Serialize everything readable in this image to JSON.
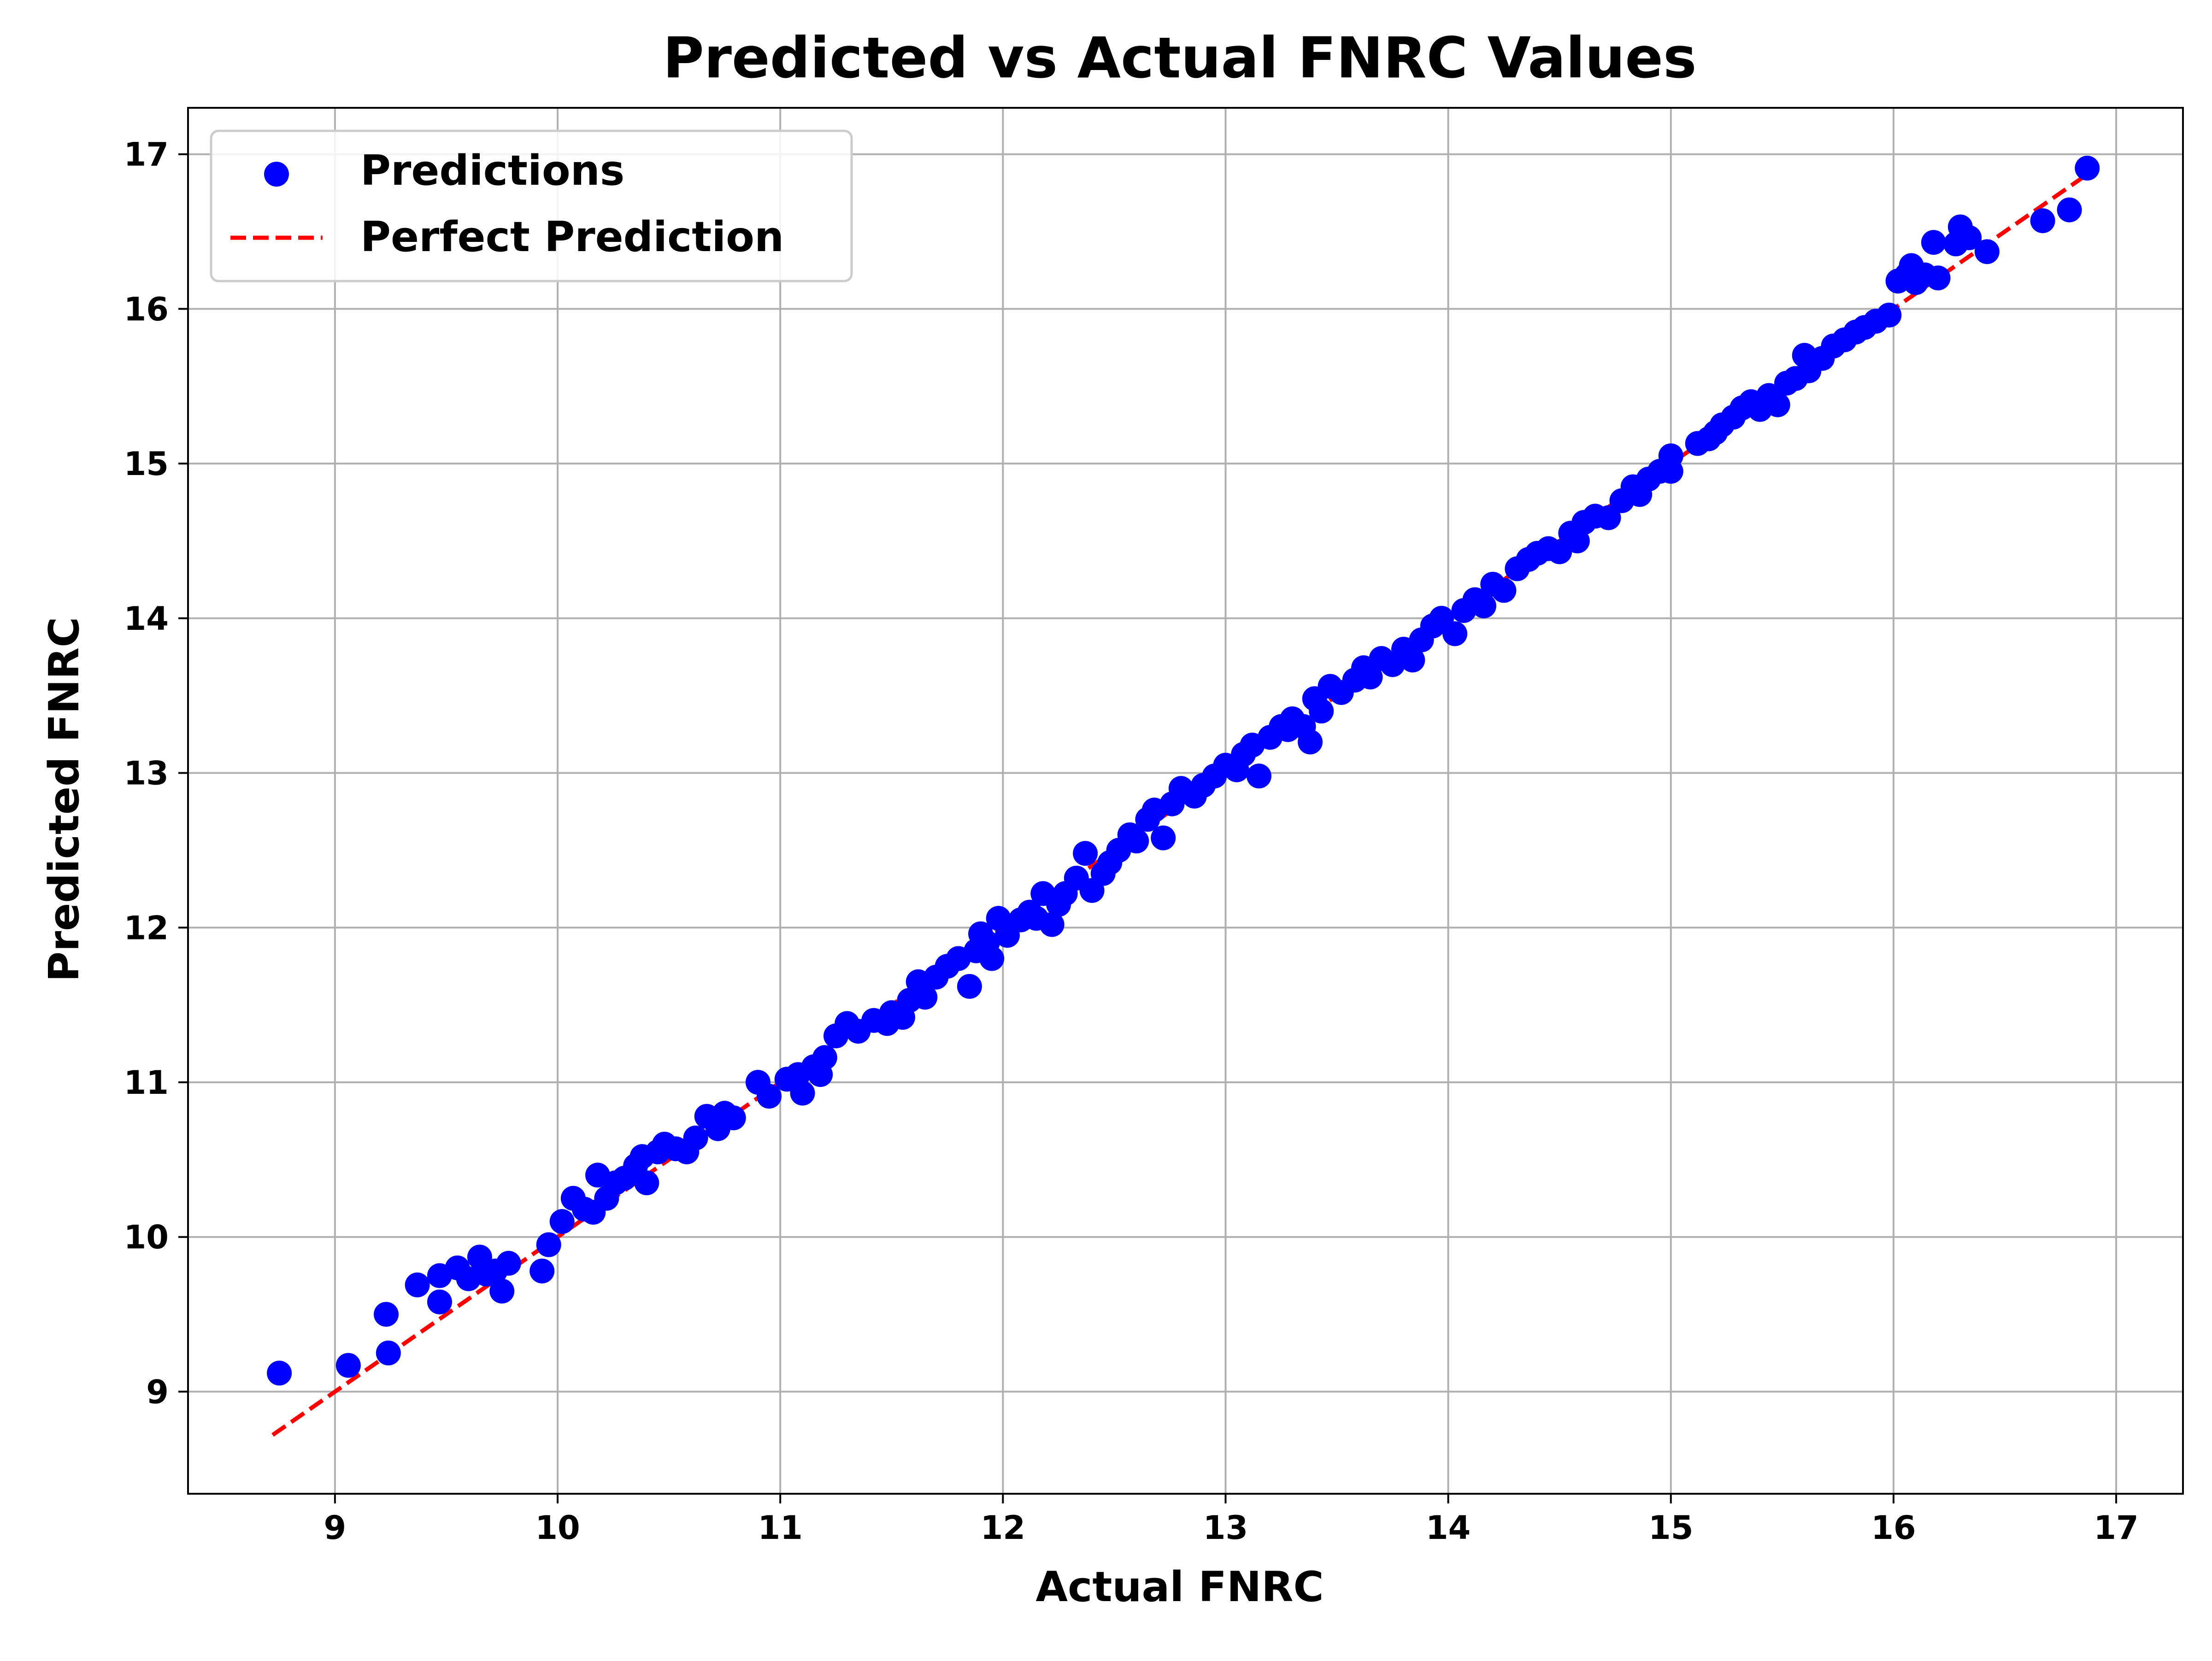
{
  "chart_data": {
    "type": "scatter",
    "title": "Predicted vs Actual FNRC Values",
    "xlabel": "Actual FNRC",
    "ylabel": "Predicted FNRC",
    "xlim": [
      8.34,
      17.3
    ],
    "ylim": [
      8.34,
      17.3
    ],
    "x_ticks": [
      9,
      10,
      11,
      12,
      13,
      14,
      15,
      16,
      17
    ],
    "y_ticks": [
      9,
      10,
      11,
      12,
      13,
      14,
      15,
      16,
      17
    ],
    "grid": true,
    "legend_position": "top-left",
    "series": [
      {
        "name": "Predictions",
        "kind": "scatter",
        "color": "#0000ff",
        "points": [
          [
            8.75,
            9.12
          ],
          [
            9.06,
            9.17
          ],
          [
            9.23,
            9.5
          ],
          [
            9.24,
            9.25
          ],
          [
            9.37,
            9.69
          ],
          [
            9.47,
            9.58
          ],
          [
            9.47,
            9.75
          ],
          [
            9.55,
            9.8
          ],
          [
            9.6,
            9.73
          ],
          [
            9.65,
            9.87
          ],
          [
            9.68,
            9.76
          ],
          [
            9.72,
            9.78
          ],
          [
            9.75,
            9.65
          ],
          [
            9.78,
            9.83
          ],
          [
            9.93,
            9.78
          ],
          [
            9.96,
            9.95
          ],
          [
            10.02,
            10.1
          ],
          [
            10.07,
            10.25
          ],
          [
            10.12,
            10.18
          ],
          [
            10.16,
            10.16
          ],
          [
            10.18,
            10.4
          ],
          [
            10.22,
            10.25
          ],
          [
            10.26,
            10.35
          ],
          [
            10.3,
            10.38
          ],
          [
            10.35,
            10.46
          ],
          [
            10.38,
            10.52
          ],
          [
            10.4,
            10.35
          ],
          [
            10.45,
            10.55
          ],
          [
            10.48,
            10.6
          ],
          [
            10.53,
            10.57
          ],
          [
            10.58,
            10.55
          ],
          [
            10.62,
            10.64
          ],
          [
            10.67,
            10.78
          ],
          [
            10.72,
            10.7
          ],
          [
            10.75,
            10.8
          ],
          [
            10.79,
            10.77
          ],
          [
            10.9,
            11.0
          ],
          [
            10.95,
            10.91
          ],
          [
            11.03,
            11.02
          ],
          [
            11.08,
            11.05
          ],
          [
            11.1,
            10.93
          ],
          [
            11.15,
            11.1
          ],
          [
            11.18,
            11.05
          ],
          [
            11.2,
            11.16
          ],
          [
            11.25,
            11.3
          ],
          [
            11.3,
            11.38
          ],
          [
            11.35,
            11.33
          ],
          [
            11.42,
            11.4
          ],
          [
            11.48,
            11.38
          ],
          [
            11.5,
            11.45
          ],
          [
            11.55,
            11.42
          ],
          [
            11.58,
            11.53
          ],
          [
            11.62,
            11.65
          ],
          [
            11.65,
            11.55
          ],
          [
            11.7,
            11.68
          ],
          [
            11.75,
            11.75
          ],
          [
            11.8,
            11.8
          ],
          [
            11.85,
            11.62
          ],
          [
            11.88,
            11.85
          ],
          [
            11.9,
            11.96
          ],
          [
            11.93,
            11.9
          ],
          [
            11.95,
            11.8
          ],
          [
            11.98,
            12.06
          ],
          [
            12.02,
            11.95
          ],
          [
            12.08,
            12.05
          ],
          [
            12.12,
            12.1
          ],
          [
            12.15,
            12.06
          ],
          [
            12.18,
            12.22
          ],
          [
            12.22,
            12.02
          ],
          [
            12.25,
            12.15
          ],
          [
            12.28,
            12.22
          ],
          [
            12.33,
            12.32
          ],
          [
            12.37,
            12.48
          ],
          [
            12.4,
            12.24
          ],
          [
            12.45,
            12.35
          ],
          [
            12.48,
            12.42
          ],
          [
            12.52,
            12.5
          ],
          [
            12.57,
            12.6
          ],
          [
            12.6,
            12.56
          ],
          [
            12.65,
            12.7
          ],
          [
            12.68,
            12.76
          ],
          [
            12.72,
            12.58
          ],
          [
            12.76,
            12.8
          ],
          [
            12.8,
            12.9
          ],
          [
            12.86,
            12.85
          ],
          [
            12.9,
            12.92
          ],
          [
            12.95,
            12.98
          ],
          [
            13.0,
            13.05
          ],
          [
            13.05,
            13.02
          ],
          [
            13.08,
            13.12
          ],
          [
            13.12,
            13.18
          ],
          [
            13.15,
            12.98
          ],
          [
            13.2,
            13.23
          ],
          [
            13.25,
            13.3
          ],
          [
            13.28,
            13.28
          ],
          [
            13.3,
            13.35
          ],
          [
            13.35,
            13.3
          ],
          [
            13.38,
            13.2
          ],
          [
            13.4,
            13.48
          ],
          [
            13.43,
            13.4
          ],
          [
            13.47,
            13.56
          ],
          [
            13.52,
            13.52
          ],
          [
            13.58,
            13.6
          ],
          [
            13.62,
            13.68
          ],
          [
            13.65,
            13.62
          ],
          [
            13.7,
            13.74
          ],
          [
            13.75,
            13.7
          ],
          [
            13.8,
            13.8
          ],
          [
            13.84,
            13.73
          ],
          [
            13.88,
            13.86
          ],
          [
            13.93,
            13.95
          ],
          [
            13.97,
            14.0
          ],
          [
            14.03,
            13.9
          ],
          [
            14.07,
            14.05
          ],
          [
            14.12,
            14.12
          ],
          [
            14.16,
            14.08
          ],
          [
            14.2,
            14.22
          ],
          [
            14.25,
            14.18
          ],
          [
            14.31,
            14.32
          ],
          [
            14.36,
            14.38
          ],
          [
            14.4,
            14.42
          ],
          [
            14.45,
            14.45
          ],
          [
            14.5,
            14.43
          ],
          [
            14.55,
            14.55
          ],
          [
            14.58,
            14.5
          ],
          [
            14.61,
            14.62
          ],
          [
            14.66,
            14.66
          ],
          [
            14.72,
            14.65
          ],
          [
            14.78,
            14.76
          ],
          [
            14.83,
            14.85
          ],
          [
            14.86,
            14.8
          ],
          [
            14.9,
            14.9
          ],
          [
            14.95,
            14.95
          ],
          [
            15.0,
            15.05
          ],
          [
            15.0,
            14.95
          ],
          [
            15.12,
            15.13
          ],
          [
            15.17,
            15.16
          ],
          [
            15.2,
            15.2
          ],
          [
            15.23,
            15.25
          ],
          [
            15.28,
            15.3
          ],
          [
            15.32,
            15.36
          ],
          [
            15.36,
            15.4
          ],
          [
            15.4,
            15.35
          ],
          [
            15.44,
            15.44
          ],
          [
            15.48,
            15.38
          ],
          [
            15.52,
            15.52
          ],
          [
            15.56,
            15.55
          ],
          [
            15.6,
            15.7
          ],
          [
            15.62,
            15.6
          ],
          [
            15.68,
            15.68
          ],
          [
            15.73,
            15.76
          ],
          [
            15.78,
            15.8
          ],
          [
            15.83,
            15.85
          ],
          [
            15.87,
            15.88
          ],
          [
            15.92,
            15.92
          ],
          [
            15.98,
            15.96
          ],
          [
            16.02,
            16.18
          ],
          [
            16.06,
            16.22
          ],
          [
            16.08,
            16.28
          ],
          [
            16.1,
            16.17
          ],
          [
            16.14,
            16.22
          ],
          [
            16.18,
            16.43
          ],
          [
            16.2,
            16.2
          ],
          [
            16.28,
            16.42
          ],
          [
            16.3,
            16.53
          ],
          [
            16.34,
            16.46
          ],
          [
            16.42,
            16.37
          ],
          [
            16.67,
            16.57
          ],
          [
            16.79,
            16.64
          ],
          [
            16.87,
            16.91
          ]
        ]
      },
      {
        "name": "Perfect Prediction",
        "kind": "line",
        "style": "dashed",
        "color": "#ff0000",
        "x": [
          8.72,
          16.88
        ],
        "y": [
          8.72,
          16.88
        ]
      }
    ]
  }
}
